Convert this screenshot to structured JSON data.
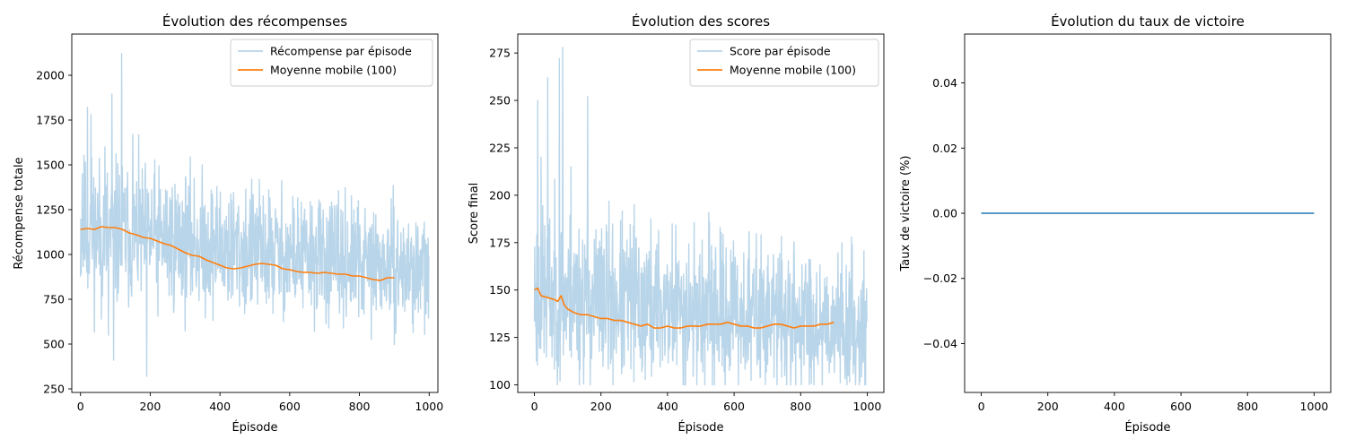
{
  "chart_data": [
    {
      "type": "line",
      "title": "Évolution des récompenses",
      "xlabel": "Épisode",
      "ylabel": "Récompense totale",
      "xlim": [
        -25,
        1025
      ],
      "ylim": [
        230,
        2230
      ],
      "xticks": [
        0,
        200,
        400,
        600,
        800,
        1000
      ],
      "yticks": [
        250,
        500,
        750,
        1000,
        1250,
        1500,
        1750,
        2000
      ],
      "legend_position": "top-right",
      "grid": false,
      "series": [
        {
          "name": "Récompense par épisode",
          "color": "#b9d5e9",
          "noise": {
            "seed": 11,
            "n": 1000,
            "base_start": 1140,
            "base_end": 900,
            "amp_start": 260,
            "amp_end": 190,
            "min": 320,
            "max": 2120
          },
          "peaks": [
            [
              5,
              1450
            ],
            [
              20,
              1820
            ],
            [
              30,
              1780
            ],
            [
              70,
              1600
            ],
            [
              90,
              1895
            ],
            [
              118,
              2120
            ],
            [
              150,
              1670
            ],
            [
              190,
              1670
            ],
            [
              95,
              410
            ],
            [
              190,
              320
            ],
            [
              60,
              640
            ],
            [
              80,
              550
            ]
          ]
        },
        {
          "name": "Moyenne mobile (100)",
          "color": "#ff7f0e",
          "x": [
            0,
            20,
            40,
            60,
            80,
            100,
            120,
            140,
            160,
            180,
            200,
            220,
            240,
            260,
            280,
            300,
            320,
            340,
            360,
            380,
            400,
            420,
            440,
            460,
            480,
            500,
            520,
            540,
            560,
            580,
            600,
            620,
            640,
            660,
            680,
            700,
            720,
            740,
            760,
            780,
            800,
            820,
            840,
            860,
            880,
            900
          ],
          "y": [
            1140,
            1145,
            1140,
            1155,
            1150,
            1150,
            1140,
            1120,
            1110,
            1095,
            1090,
            1075,
            1060,
            1050,
            1030,
            1010,
            995,
            990,
            970,
            955,
            940,
            925,
            920,
            925,
            935,
            945,
            950,
            945,
            940,
            920,
            915,
            905,
            900,
            900,
            895,
            900,
            895,
            890,
            890,
            880,
            880,
            870,
            860,
            855,
            870,
            870
          ]
        }
      ]
    },
    {
      "type": "line",
      "title": "Évolution des scores",
      "xlabel": "Épisode",
      "ylabel": "Score final",
      "xlim": [
        -50,
        1050
      ],
      "ylim": [
        96,
        285
      ],
      "xticks": [
        0,
        200,
        400,
        600,
        800,
        1000
      ],
      "yticks": [
        100,
        125,
        150,
        175,
        200,
        225,
        250,
        275
      ],
      "legend_position": "top-right",
      "grid": false,
      "series": [
        {
          "name": "Score par épisode",
          "color": "#b9d5e9",
          "noise": {
            "seed": 23,
            "n": 1000,
            "base_start": 148,
            "base_end": 131,
            "amp_start": 28,
            "amp_end": 22,
            "min": 100,
            "max": 278
          },
          "peaks": [
            [
              10,
              250
            ],
            [
              20,
              220
            ],
            [
              40,
              262
            ],
            [
              75,
              272
            ],
            [
              85,
              278
            ],
            [
              160,
              252
            ],
            [
              110,
              215
            ],
            [
              300,
              195
            ]
          ]
        },
        {
          "name": "Moyenne mobile (100)",
          "color": "#ff7f0e",
          "x": [
            0,
            10,
            20,
            40,
            60,
            70,
            80,
            90,
            100,
            120,
            140,
            160,
            180,
            200,
            220,
            240,
            260,
            280,
            300,
            320,
            340,
            360,
            380,
            400,
            420,
            440,
            460,
            480,
            500,
            520,
            540,
            560,
            580,
            600,
            620,
            640,
            660,
            680,
            700,
            720,
            740,
            760,
            780,
            800,
            820,
            840,
            860,
            880,
            900
          ],
          "y": [
            150,
            151,
            147,
            146,
            145,
            144,
            147,
            142,
            140,
            138,
            137,
            137,
            136,
            135,
            135,
            134,
            134,
            133,
            132,
            131,
            132,
            130,
            130,
            131,
            130,
            130,
            131,
            131,
            131,
            132,
            132,
            132,
            133,
            132,
            131,
            131,
            130,
            130,
            131,
            132,
            132,
            131,
            130,
            131,
            131,
            131,
            132,
            132,
            133
          ]
        }
      ]
    },
    {
      "type": "line",
      "title": "Évolution du taux de victoire",
      "xlabel": "Épisode",
      "ylabel": "Taux de victoire (%)",
      "xlim": [
        -50,
        1050
      ],
      "ylim": [
        -0.055,
        0.055
      ],
      "xticks": [
        0,
        200,
        400,
        600,
        800,
        1000
      ],
      "yticks": [
        -0.04,
        -0.02,
        0.0,
        0.02,
        0.04
      ],
      "yticklabels": [
        "−0.04",
        "−0.02",
        "0.00",
        "0.02",
        "0.04"
      ],
      "grid": false,
      "series": [
        {
          "color": "#1f77b4",
          "x": [
            0,
            1000
          ],
          "y": [
            0,
            0
          ]
        }
      ]
    }
  ]
}
